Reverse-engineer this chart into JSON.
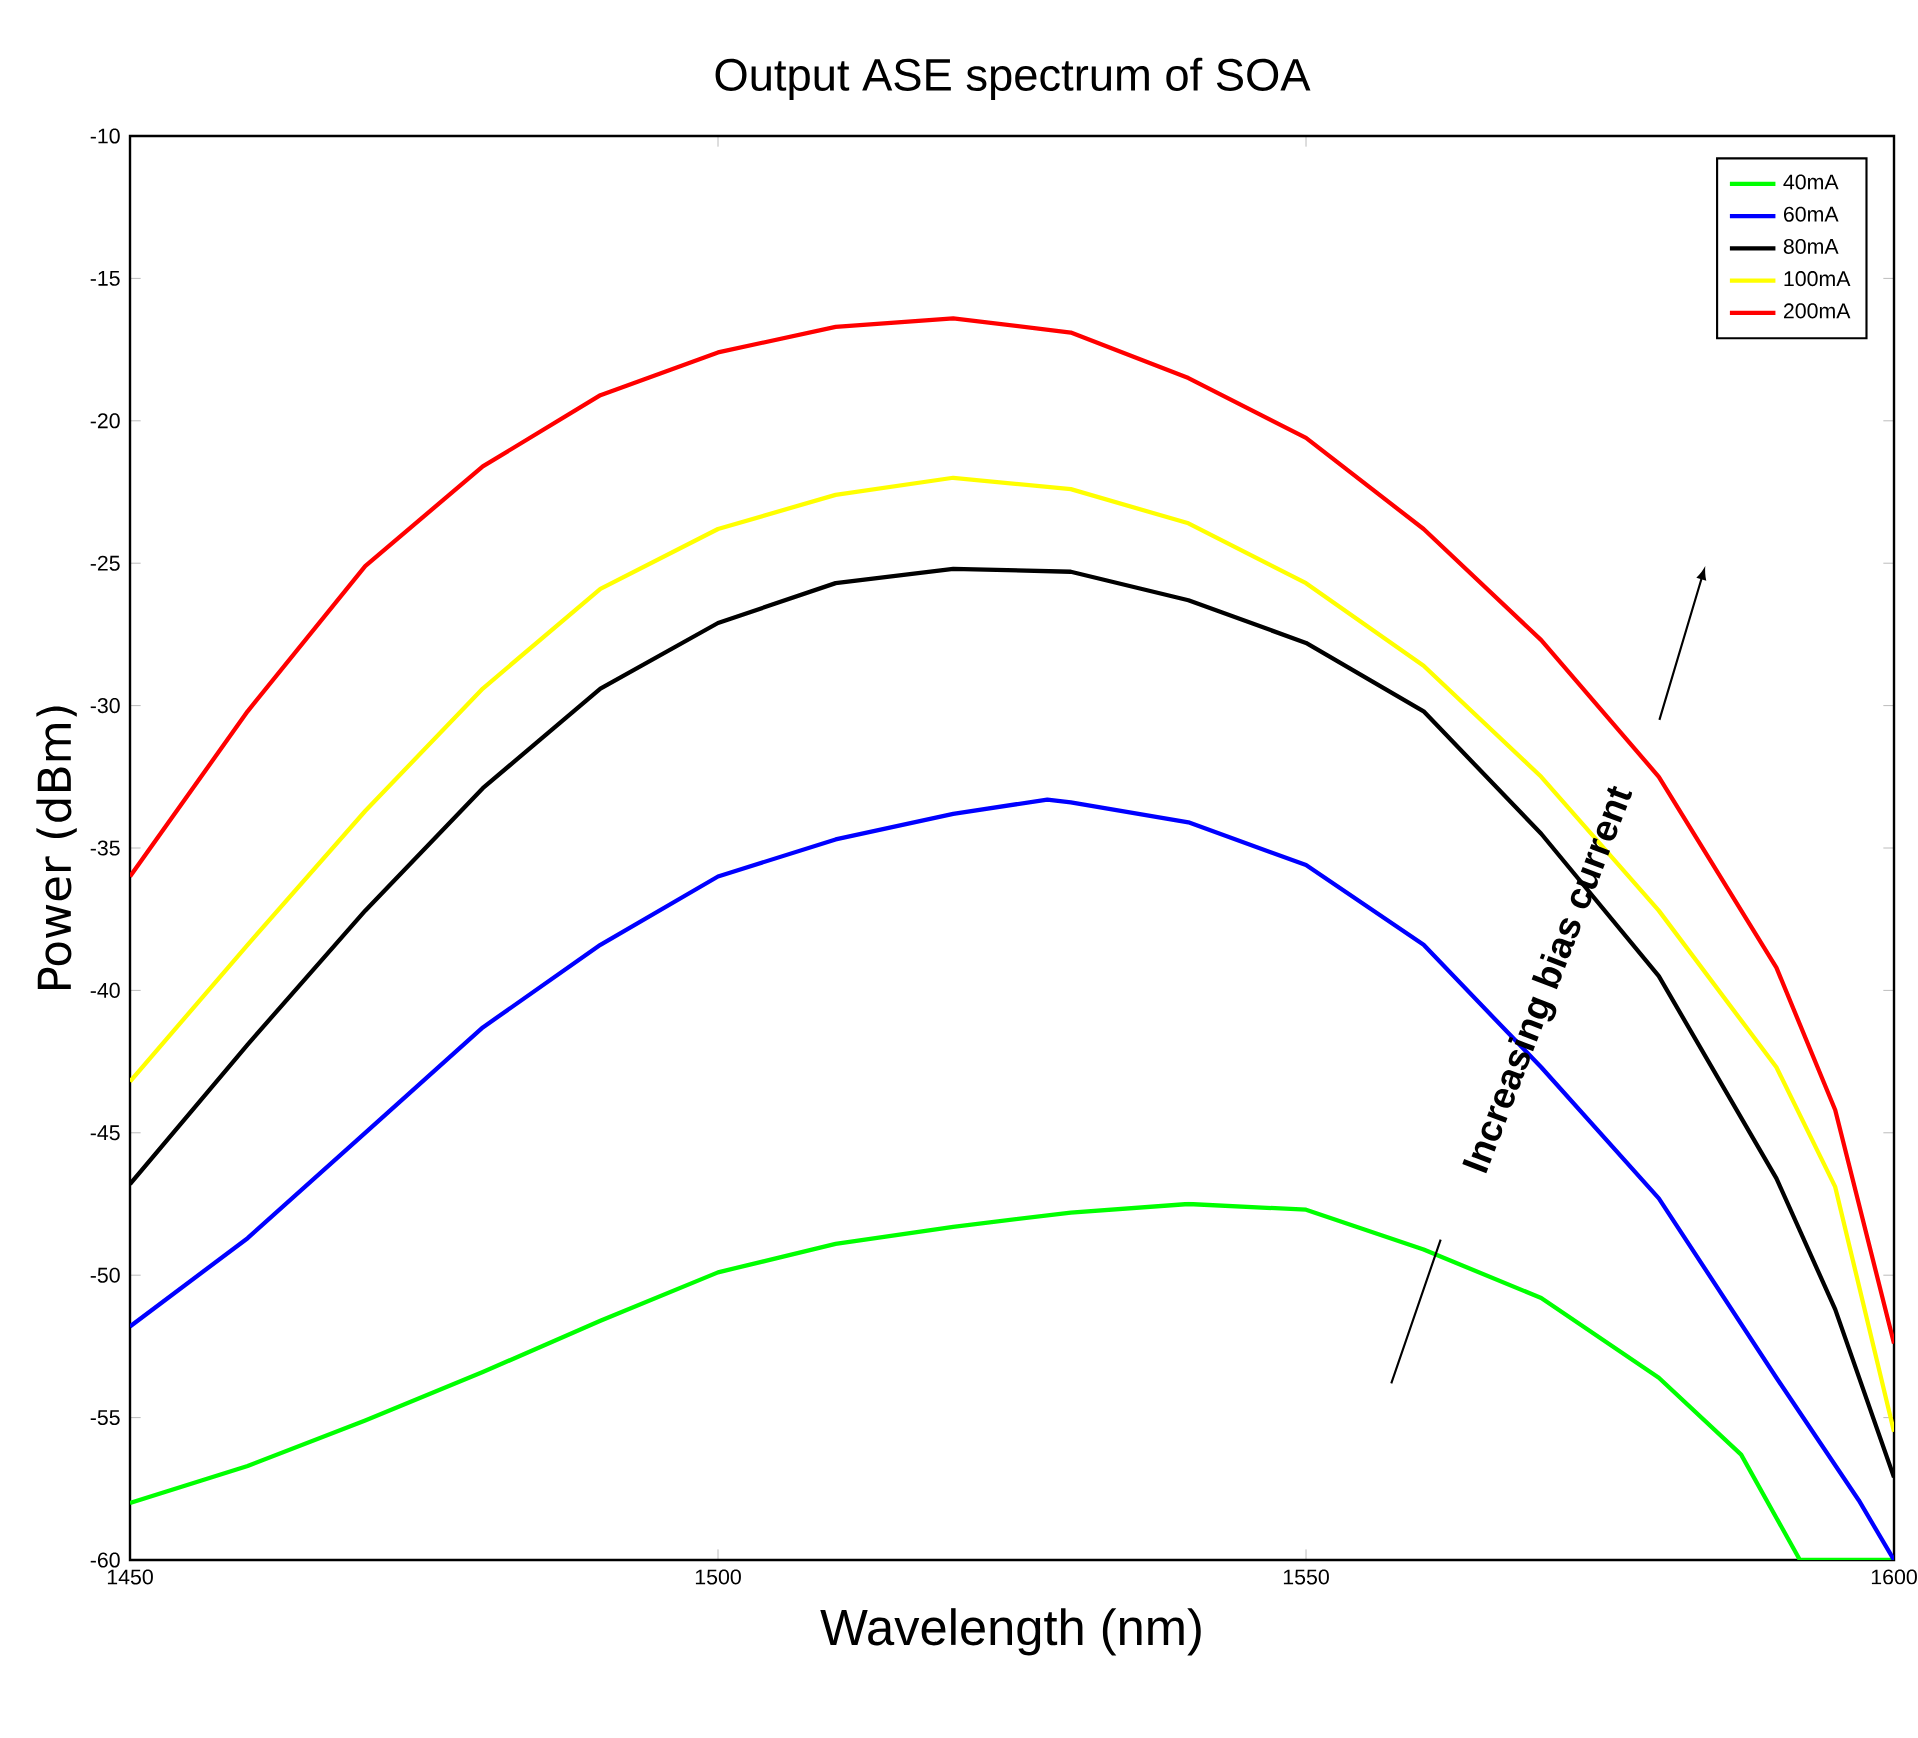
{
  "chart_data": {
    "type": "line",
    "title": "Output ASE spectrum  of SOA",
    "xlabel": "Wavelength (nm)",
    "ylabel": "Power (dBm)",
    "xlim": [
      1450,
      1600
    ],
    "ylim": [
      -60,
      -10
    ],
    "xticks": [
      1450,
      1500,
      1550,
      1600
    ],
    "yticks": [
      -60,
      -55,
      -50,
      -45,
      -40,
      -35,
      -30,
      -25,
      -20,
      -15,
      -10
    ],
    "legend": "top right",
    "marker": "none",
    "line_style": "solid",
    "annotations": [
      "Increasing bias current"
    ],
    "series": [
      {
        "name": "40mA",
        "color": "#00ff00",
        "x": [
          1450,
          1460,
          1470,
          1480,
          1490,
          1500,
          1510,
          1520,
          1530,
          1540,
          1550,
          1560,
          1570,
          1580,
          1587,
          1592,
          1596,
          1600
        ],
        "values": [
          -58.0,
          -56.7,
          -55.1,
          -53.4,
          -51.6,
          -49.9,
          -48.9,
          -48.3,
          -47.8,
          -47.5,
          -47.7,
          -49.1,
          -50.8,
          -53.6,
          -56.3,
          -60,
          -60,
          -60
        ]
      },
      {
        "name": "60mA",
        "color": "#0000ff",
        "x": [
          1450,
          1460,
          1470,
          1480,
          1490,
          1500,
          1510,
          1520,
          1528,
          1530,
          1540,
          1550,
          1560,
          1570,
          1580,
          1590,
          1597,
          1600
        ],
        "values": [
          -51.8,
          -48.7,
          -45.0,
          -41.3,
          -38.4,
          -36.0,
          -34.7,
          -33.8,
          -33.3,
          -33.4,
          -34.1,
          -35.6,
          -38.4,
          -42.7,
          -47.3,
          -53.6,
          -57.9,
          -60
        ]
      },
      {
        "name": "80mA",
        "color": "#000000",
        "x": [
          1450,
          1460,
          1470,
          1480,
          1490,
          1500,
          1510,
          1520,
          1530,
          1540,
          1550,
          1560,
          1570,
          1580,
          1590,
          1595,
          1600
        ],
        "values": [
          -46.8,
          -41.9,
          -37.2,
          -32.9,
          -29.4,
          -27.1,
          -25.7,
          -25.2,
          -25.3,
          -26.3,
          -27.8,
          -30.2,
          -34.5,
          -39.5,
          -46.6,
          -51.2,
          -57.1
        ]
      },
      {
        "name": "100mA",
        "color": "#ffff00",
        "x": [
          1450,
          1460,
          1470,
          1480,
          1490,
          1500,
          1510,
          1520,
          1530,
          1540,
          1550,
          1560,
          1570,
          1580,
          1590,
          1595,
          1600
        ],
        "values": [
          -43.2,
          -38.4,
          -33.7,
          -29.4,
          -25.9,
          -23.8,
          -22.6,
          -22.0,
          -22.4,
          -23.6,
          -25.7,
          -28.6,
          -32.5,
          -37.2,
          -42.7,
          -46.9,
          -55.5
        ]
      },
      {
        "name": "200mA",
        "color": "#ff0000",
        "x": [
          1450,
          1460,
          1470,
          1480,
          1490,
          1500,
          1510,
          1520,
          1530,
          1540,
          1550,
          1560,
          1570,
          1580,
          1590,
          1595,
          1600
        ],
        "values": [
          -36.0,
          -30.2,
          -25.1,
          -21.6,
          -19.1,
          -17.6,
          -16.7,
          -16.4,
          -16.9,
          -18.5,
          -20.6,
          -23.8,
          -27.7,
          -32.5,
          -39.2,
          -44.2,
          -52.4
        ]
      }
    ]
  }
}
